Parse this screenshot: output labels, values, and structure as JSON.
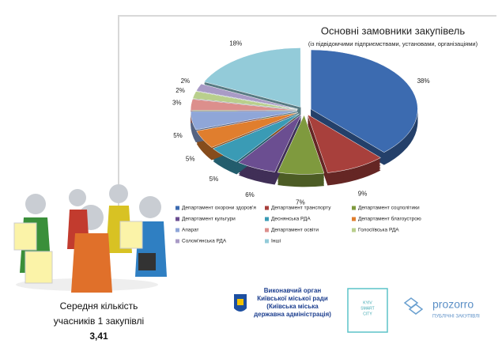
{
  "chart_data": {
    "type": "pie",
    "title": "Основні замовники закупівель",
    "subtitle": "(із підвідомчими підприємствами, установами, організаціями)",
    "categories": [
      "Департамент охорони здоров'я",
      "Департамент транспорту",
      "Департамент соцполітики",
      "Департамент культури",
      "Деснянська РДА",
      "Департамент благоустрою",
      "Апарат",
      "Департамент освіти",
      "Голосіївська РДА",
      "Солом'янська РДА",
      "Інші"
    ],
    "values": [
      38,
      9,
      7,
      6,
      5,
      5,
      5,
      3,
      2,
      2,
      18
    ],
    "value_labels": [
      "38%",
      "9%",
      "7%",
      "6%",
      "5%",
      "5%",
      "5%",
      "3%",
      "2%",
      "2%",
      "18%"
    ],
    "colors": [
      "#3c6bb0",
      "#a8403c",
      "#7f9a3e",
      "#6b4e91",
      "#3a9bb5",
      "#e07e2e",
      "#8fa6d8",
      "#dc8f8c",
      "#b9cf8c",
      "#a99bc6",
      "#93cbd9"
    ]
  },
  "stat": {
    "lines": [
      "Середня кількість",
      "учасників 1 закупівлі"
    ],
    "value": "3,41"
  },
  "footer": {
    "kyiv": [
      "Виконавчий орган",
      "Київської міської ради",
      "(Київська міська",
      "державна адміністрація)"
    ],
    "smart_city": [
      "KYIV",
      "SMART",
      "CITY"
    ],
    "prozorro": {
      "name": "prozorro",
      "tagline": "ПУБЛІЧНІ ЗАКУПІВЛІ"
    }
  }
}
